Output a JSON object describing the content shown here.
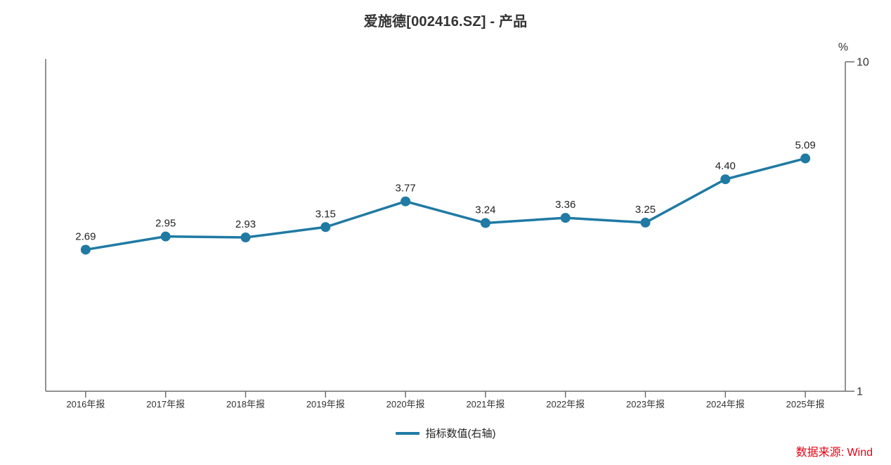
{
  "title": "爱施德[002416.SZ] - 产品",
  "chart_data": {
    "type": "line",
    "categories": [
      "2016年报",
      "2017年报",
      "2018年报",
      "2019年报",
      "2020年报",
      "2021年报",
      "2022年报",
      "2023年报",
      "2024年报",
      "2025年报"
    ],
    "series": [
      {
        "name": "指标数值(右轴)",
        "values": [
          2.69,
          2.95,
          2.93,
          3.15,
          3.77,
          3.24,
          3.36,
          3.25,
          4.4,
          5.09
        ]
      }
    ],
    "value_labels": [
      "2.69",
      "2.95",
      "2.93",
      "3.15",
      "3.77",
      "3.24",
      "3.36",
      "3.25",
      "4.40",
      "5.09"
    ],
    "title": "爱施德[002416.SZ] - 产品",
    "xlabel": "",
    "ylabel_right": "%",
    "y_axis": {
      "side": "right",
      "scale": "log",
      "min": 1,
      "max": 10,
      "ticks": [
        10,
        1
      ],
      "tick_labels": [
        "10",
        "1"
      ]
    },
    "grid": false,
    "legend_position": "bottom-center",
    "line_color": "#1f7aa4",
    "point_radius": 7,
    "line_width": 3.5
  },
  "legend": {
    "label": "指标数值(右轴)"
  },
  "source": {
    "label": "数据来源: Wind",
    "color": "#e60012"
  },
  "colors": {
    "series_line": "#1f7aa4",
    "axis_line": "#6e6e6e",
    "axis_text": "#333333",
    "value_label_text": "#222222",
    "title_text": "#333333",
    "source_text": "#e60012",
    "background": "#ffffff"
  }
}
